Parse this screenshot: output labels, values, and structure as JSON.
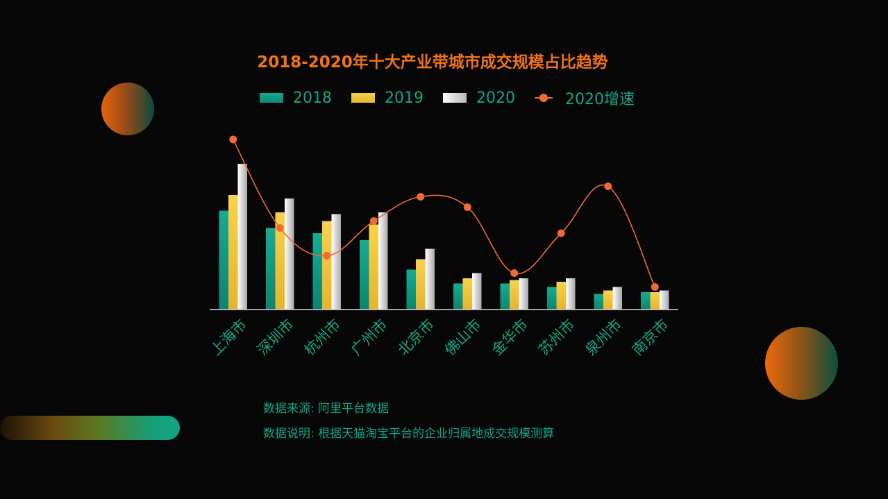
{
  "colors": {
    "background": "#070707",
    "title": "#f07318",
    "teal": "#14a08a",
    "yellow": "#f5c842",
    "white": "#f4f4f4",
    "line": "#ef6a35",
    "text": "#17a48a"
  },
  "notes": {
    "source": "数据来源: 阿里平台数据",
    "description": "数据说明: 根据天猫淘宝平台的企业归属地成交规模测算"
  },
  "chart_data": {
    "type": "bar",
    "title": "2018-2020年十大产业带城市成交规模占比趋势",
    "categories": [
      "上海市",
      "深圳市",
      "杭州市",
      "广州市",
      "北京市",
      "佛山市",
      "金华市",
      "苏州市",
      "泉州市",
      "南京市"
    ],
    "series": [
      {
        "name": "2018",
        "type": "bar",
        "color": "#14a08a",
        "values": [
          57,
          47,
          44,
          40,
          23,
          15,
          15,
          13,
          9,
          10
        ]
      },
      {
        "name": "2019",
        "type": "bar",
        "color": "#f5c842",
        "values": [
          66,
          56,
          51,
          49,
          29,
          18,
          17,
          16,
          11,
          10
        ]
      },
      {
        "name": "2020",
        "type": "bar",
        "color": "#f4f4f4",
        "values": [
          84,
          64,
          55,
          56,
          35,
          21,
          18,
          18,
          13,
          11
        ]
      },
      {
        "name": "2020增速",
        "type": "line",
        "color": "#ef6a35",
        "values": [
          98,
          47,
          31,
          51,
          65,
          59,
          21,
          44,
          71,
          13
        ]
      }
    ],
    "ylim": [
      0,
      100
    ],
    "xlabel": "",
    "ylabel": "",
    "legend": "top-center",
    "grid": false
  }
}
